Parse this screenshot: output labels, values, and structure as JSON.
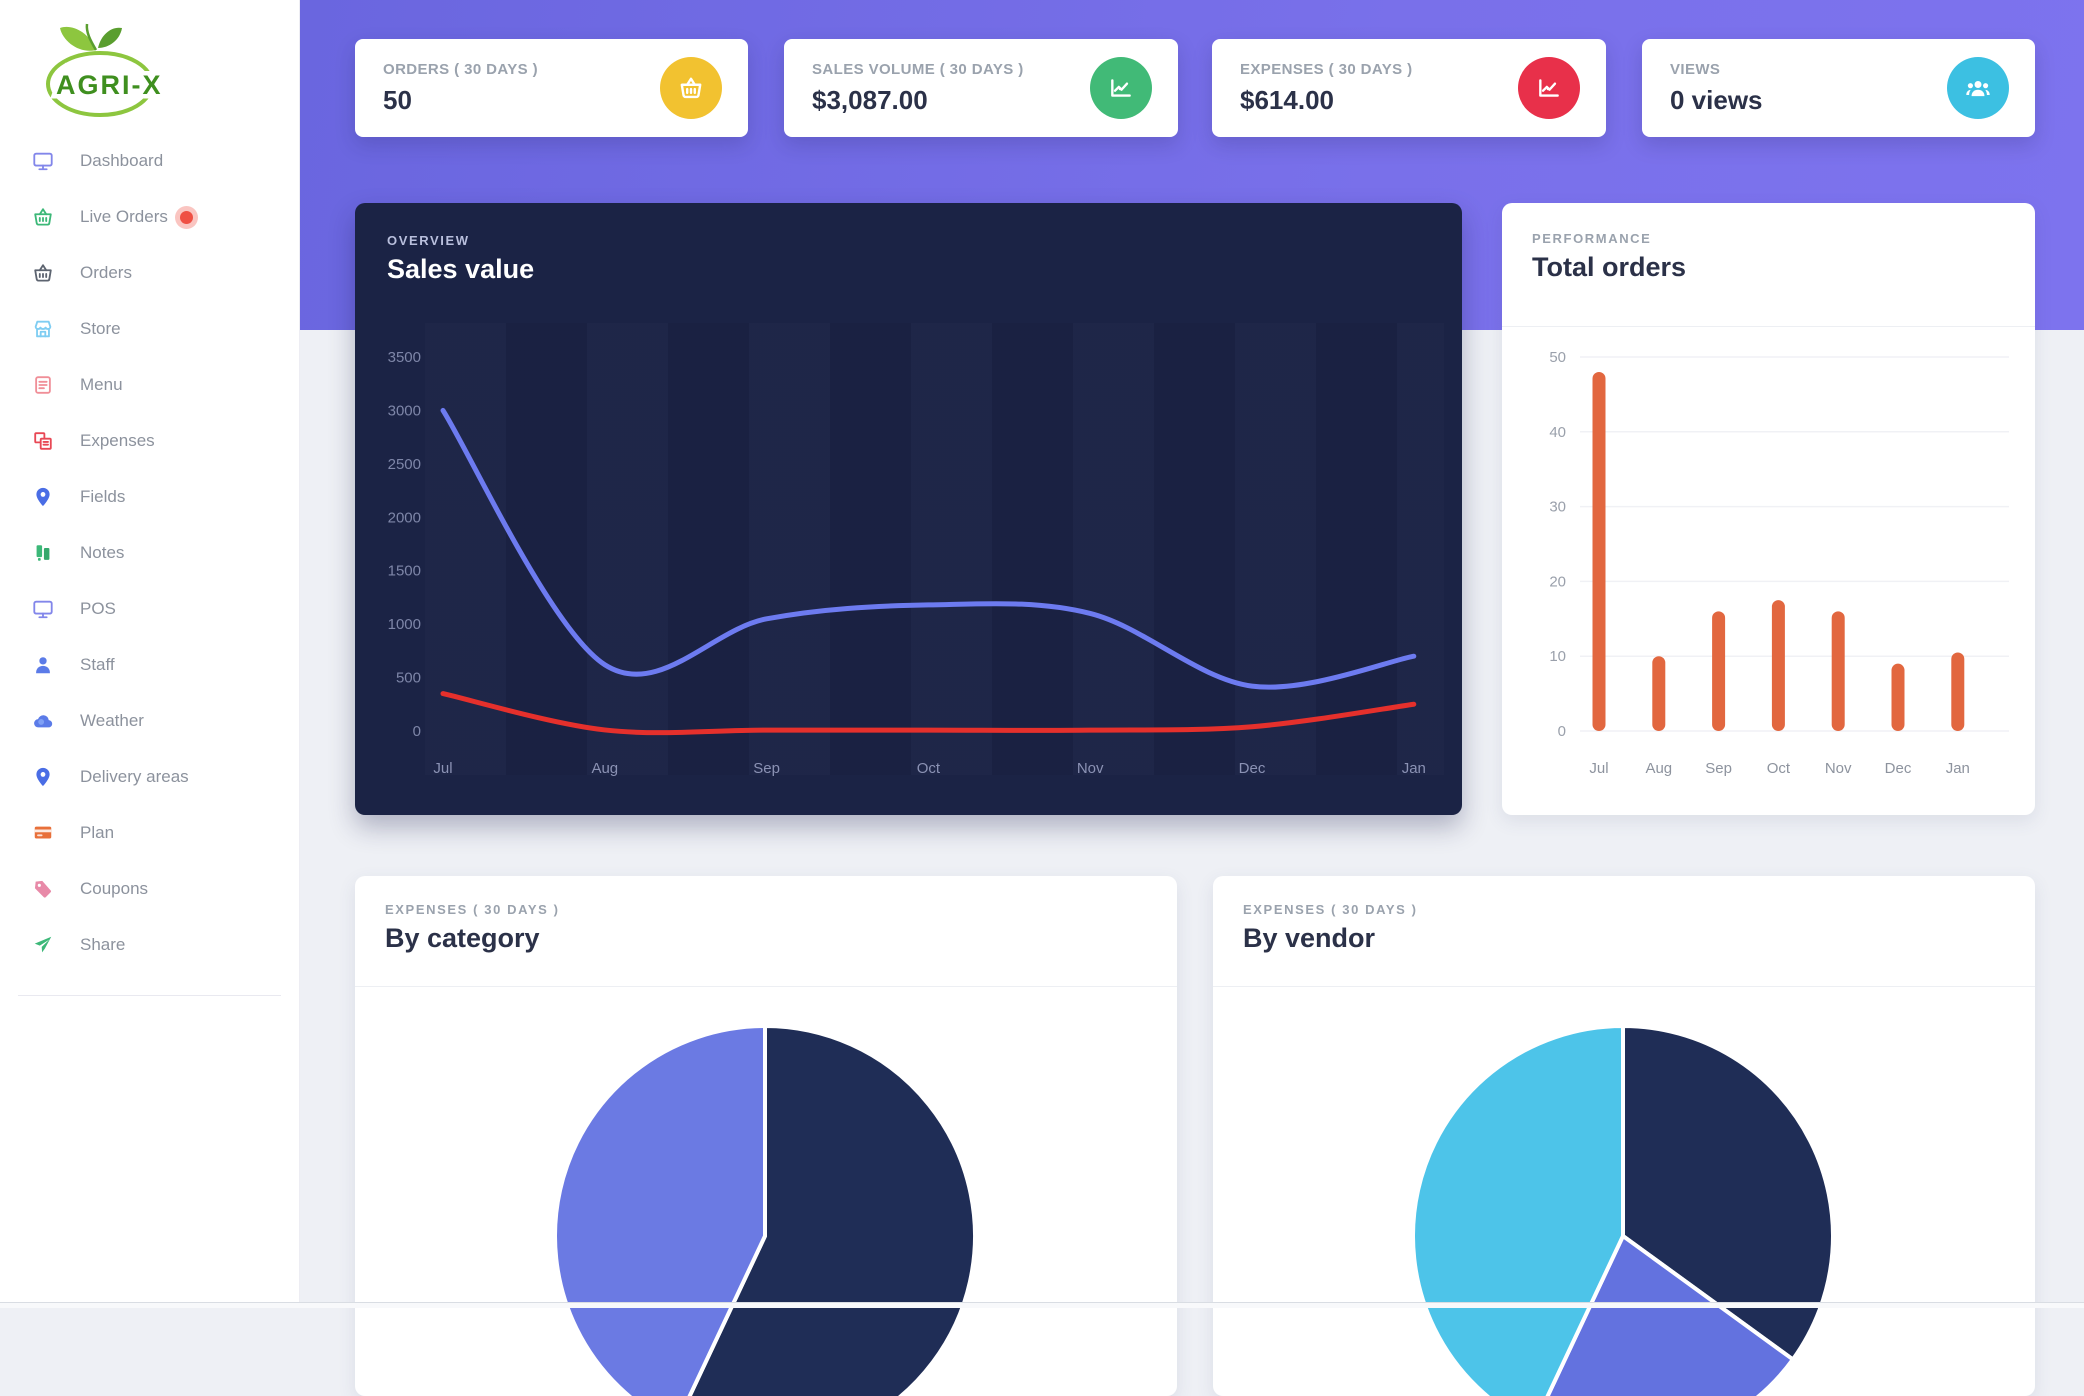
{
  "brand": {
    "name": "AGRI-X",
    "color": "#4c9a2a",
    "leaf_color": "#8dc63f"
  },
  "sidebar": {
    "items": [
      {
        "label": "Dashboard",
        "icon": "monitor-icon",
        "color": "#8286ea"
      },
      {
        "label": "Live Orders",
        "icon": "basket-icon",
        "color": "#3cb878",
        "badge": "live-dot"
      },
      {
        "label": "Orders",
        "icon": "basket-icon",
        "color": "#5d6470"
      },
      {
        "label": "Store",
        "icon": "storefront-icon",
        "color": "#7fcdf2"
      },
      {
        "label": "Menu",
        "icon": "list-icon",
        "color": "#f08f98"
      },
      {
        "label": "Expenses",
        "icon": "receipts-icon",
        "color": "#e84855"
      },
      {
        "label": "Fields",
        "icon": "map-pin-icon",
        "color": "#4a6de5"
      },
      {
        "label": "Notes",
        "icon": "notes-icon",
        "color": "#3cb878"
      },
      {
        "label": "POS",
        "icon": "monitor-icon",
        "color": "#8286ea"
      },
      {
        "label": "Staff",
        "icon": "person-icon",
        "color": "#5b7be8"
      },
      {
        "label": "Weather",
        "icon": "cloud-icon",
        "color": "#5b7be8"
      },
      {
        "label": "Delivery areas",
        "icon": "map-pin-icon",
        "color": "#4a6de5"
      },
      {
        "label": "Plan",
        "icon": "card-icon",
        "color": "#e8703a"
      },
      {
        "label": "Coupons",
        "icon": "tag-icon",
        "color": "#e88aa8"
      },
      {
        "label": "Share",
        "icon": "paper-plane-icon",
        "color": "#3cb878"
      }
    ]
  },
  "stats": [
    {
      "label": "ORDERS ( 30 DAYS )",
      "value": "50",
      "icon": "basket-icon",
      "icon_bg": "#f2c230"
    },
    {
      "label": "SALES VOLUME ( 30 DAYS )",
      "value": "$3,087.00",
      "icon": "line-chart-icon",
      "icon_bg": "#41ba77"
    },
    {
      "label": "EXPENSES ( 30 DAYS )",
      "value": "$614.00",
      "icon": "line-chart-icon",
      "icon_bg": "#e8304a"
    },
    {
      "label": "VIEWS",
      "value": "0 views",
      "icon": "users-icon",
      "icon_bg": "#3cc0e2"
    }
  ],
  "chart_data": [
    {
      "id": "sales_value",
      "type": "line",
      "subtitle": "OVERVIEW",
      "title": "Sales value",
      "x": [
        "Jul",
        "Aug",
        "Sep",
        "Oct",
        "Nov",
        "Dec",
        "Jan"
      ],
      "ylim": [
        0,
        3500
      ],
      "yticks": [
        0,
        500,
        1000,
        1500,
        2000,
        2500,
        3000,
        3500
      ],
      "grid": false,
      "legend": "none",
      "series": [
        {
          "name": "sales",
          "color": "#6d7bf0",
          "values": [
            3000,
            620,
            1050,
            1180,
            1100,
            420,
            700
          ]
        },
        {
          "name": "expenses",
          "color": "#e5302c",
          "values": [
            350,
            10,
            8,
            8,
            8,
            40,
            250
          ]
        }
      ]
    },
    {
      "id": "total_orders",
      "type": "bar",
      "subtitle": "PERFORMANCE",
      "title": "Total orders",
      "categories": [
        "Jul",
        "Aug",
        "Sep",
        "Oct",
        "Nov",
        "Dec",
        "Jan"
      ],
      "values": [
        48,
        10,
        16,
        17.5,
        16,
        9,
        10.5
      ],
      "ylim": [
        0,
        50
      ],
      "yticks": [
        0,
        10,
        20,
        30,
        40,
        50
      ],
      "grid": true,
      "bar_color": "#e2673f"
    },
    {
      "id": "by_category",
      "type": "pie",
      "subtitle": "EXPENSES ( 30 DAYS )",
      "title": "By category",
      "start_angle_deg": 0,
      "clockwise": true,
      "slices": [
        {
          "name": "slice-1",
          "color": "#1f2d56",
          "pct": 57
        },
        {
          "name": "slice-2",
          "color": "#6b7ae3",
          "pct": 43
        }
      ]
    },
    {
      "id": "by_vendor",
      "type": "pie",
      "subtitle": "EXPENSES ( 30 DAYS )",
      "title": "By vendor",
      "start_angle_deg": 0,
      "clockwise": true,
      "slices": [
        {
          "name": "slice-1",
          "color": "#1f2d56",
          "pct": 35
        },
        {
          "name": "slice-2",
          "color": "#6372df",
          "pct": 22
        },
        {
          "name": "slice-3",
          "color": "#4dc4e9",
          "pct": 43
        }
      ]
    }
  ]
}
